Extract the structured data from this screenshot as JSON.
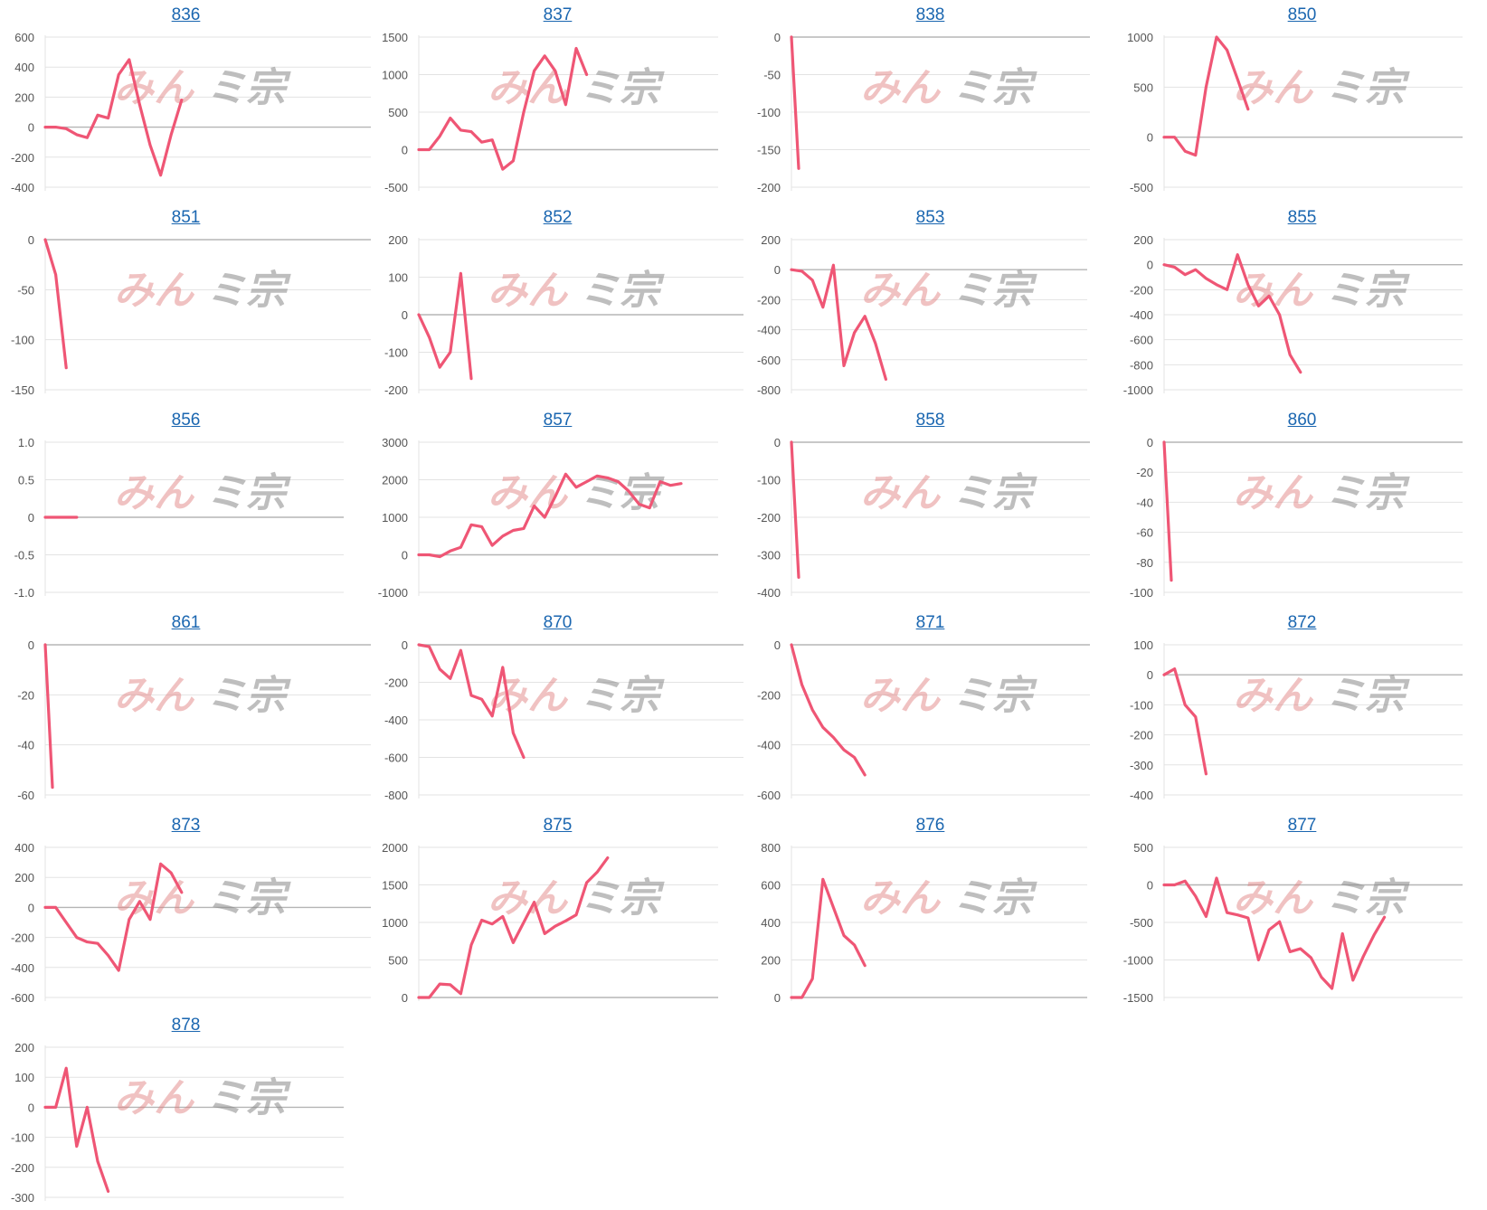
{
  "watermark": {
    "left": "みん",
    "right": "ミ宗"
  },
  "colors": {
    "line": "#ef5675",
    "title": "#1a66b0"
  },
  "chart_data": [
    {
      "type": "line",
      "title": "836",
      "ylim": [
        -400,
        600
      ],
      "ticks": [
        600,
        400,
        200,
        0,
        -200,
        -400
      ],
      "values": [
        0,
        0,
        -10,
        -50,
        -70,
        80,
        60,
        350,
        450,
        150,
        -120,
        -320,
        -50,
        180
      ]
    },
    {
      "type": "line",
      "title": "837",
      "ylim": [
        -500,
        1500
      ],
      "ticks": [
        1500,
        1000,
        500,
        0,
        -500
      ],
      "values": [
        0,
        0,
        180,
        420,
        260,
        240,
        100,
        130,
        -260,
        -150,
        500,
        1050,
        1250,
        1050,
        600,
        1350,
        1000
      ]
    },
    {
      "type": "line",
      "title": "838",
      "ylim": [
        -200,
        0
      ],
      "ticks": [
        0,
        -50,
        -100,
        -150,
        -200
      ],
      "values": [
        0,
        -175
      ]
    },
    {
      "type": "line",
      "title": "850",
      "ylim": [
        -500,
        1000
      ],
      "ticks": [
        1000,
        500,
        0,
        -500
      ],
      "values": [
        0,
        0,
        -140,
        -180,
        500,
        1000,
        870,
        580,
        280
      ]
    },
    {
      "type": "line",
      "title": "851",
      "ylim": [
        -150,
        0
      ],
      "ticks": [
        0,
        -50,
        -100,
        -150
      ],
      "values": [
        0,
        -35,
        -128
      ]
    },
    {
      "type": "line",
      "title": "852",
      "ylim": [
        -200,
        200
      ],
      "ticks": [
        200,
        100,
        0,
        -100,
        -200
      ],
      "values": [
        0,
        -60,
        -140,
        -100,
        110,
        -170
      ]
    },
    {
      "type": "line",
      "title": "853",
      "ylim": [
        -800,
        200
      ],
      "ticks": [
        200,
        0,
        -200,
        -400,
        -600,
        -800
      ],
      "values": [
        0,
        -10,
        -70,
        -250,
        30,
        -640,
        -420,
        -310,
        -490,
        -730
      ]
    },
    {
      "type": "line",
      "title": "855",
      "ylim": [
        -1000,
        200
      ],
      "ticks": [
        200,
        0,
        -200,
        -400,
        -600,
        -800,
        -1000
      ],
      "values": [
        0,
        -20,
        -80,
        -40,
        -110,
        -160,
        -200,
        80,
        -160,
        -330,
        -250,
        -400,
        -720,
        -860
      ]
    },
    {
      "type": "line",
      "title": "856",
      "ylim": [
        -1.0,
        1.0
      ],
      "ticks": [
        1.0,
        0.5,
        0,
        -0.5,
        -1.0
      ],
      "tickLabels": [
        "1.0",
        "0.5",
        "0",
        "-0.5",
        "-1.0"
      ],
      "values": [
        0,
        0,
        0,
        0
      ]
    },
    {
      "type": "line",
      "title": "857",
      "ylim": [
        -1000,
        3000
      ],
      "ticks": [
        3000,
        2000,
        1000,
        0,
        -1000
      ],
      "values": [
        0,
        0,
        -50,
        100,
        200,
        800,
        750,
        250,
        500,
        650,
        700,
        1300,
        1000,
        1550,
        2150,
        1800,
        1950,
        2100,
        2050,
        1950,
        1700,
        1350,
        1250,
        1950,
        1850,
        1900
      ]
    },
    {
      "type": "line",
      "title": "858",
      "ylim": [
        -400,
        0
      ],
      "ticks": [
        0,
        -100,
        -200,
        -300,
        -400
      ],
      "values": [
        0,
        -360
      ]
    },
    {
      "type": "line",
      "title": "860",
      "ylim": [
        -100,
        0
      ],
      "ticks": [
        0,
        -20,
        -40,
        -60,
        -80,
        -100
      ],
      "values": [
        0,
        -92
      ]
    },
    {
      "type": "line",
      "title": "861",
      "ylim": [
        -60,
        0
      ],
      "ticks": [
        0,
        -20,
        -40,
        -60
      ],
      "values": [
        0,
        -57
      ]
    },
    {
      "type": "line",
      "title": "870",
      "ylim": [
        -800,
        0
      ],
      "ticks": [
        0,
        -200,
        -400,
        -600,
        -800
      ],
      "values": [
        0,
        -10,
        -130,
        -180,
        -30,
        -270,
        -290,
        -380,
        -120,
        -470,
        -600
      ]
    },
    {
      "type": "line",
      "title": "871",
      "ylim": [
        -600,
        0
      ],
      "ticks": [
        0,
        -200,
        -400,
        -600
      ],
      "values": [
        0,
        -160,
        -260,
        -330,
        -370,
        -420,
        -450,
        -520
      ]
    },
    {
      "type": "line",
      "title": "872",
      "ylim": [
        -400,
        100
      ],
      "ticks": [
        100,
        0,
        -100,
        -200,
        -300,
        -400
      ],
      "values": [
        0,
        20,
        -100,
        -140,
        -330
      ]
    },
    {
      "type": "line",
      "title": "873",
      "ylim": [
        -600,
        400
      ],
      "ticks": [
        400,
        200,
        0,
        -200,
        -400,
        -600
      ],
      "values": [
        0,
        0,
        -100,
        -200,
        -230,
        -240,
        -320,
        -420,
        -80,
        40,
        -80,
        290,
        230,
        100
      ]
    },
    {
      "type": "line",
      "title": "875",
      "ylim": [
        0,
        2000
      ],
      "ticks": [
        2000,
        1500,
        1000,
        500,
        0
      ],
      "values": [
        0,
        0,
        180,
        170,
        50,
        700,
        1030,
        980,
        1080,
        730,
        1000,
        1270,
        850,
        950,
        1020,
        1100,
        1530,
        1670,
        1860
      ]
    },
    {
      "type": "line",
      "title": "876",
      "ylim": [
        0,
        800
      ],
      "ticks": [
        800,
        600,
        400,
        200,
        0
      ],
      "values": [
        0,
        0,
        100,
        630,
        480,
        330,
        280,
        170
      ]
    },
    {
      "type": "line",
      "title": "877",
      "ylim": [
        -1500,
        500
      ],
      "ticks": [
        500,
        0,
        -500,
        -1000,
        -1500
      ],
      "values": [
        0,
        0,
        50,
        -150,
        -420,
        90,
        -370,
        -400,
        -440,
        -1000,
        -600,
        -490,
        -890,
        -850,
        -970,
        -1230,
        -1380,
        -650,
        -1270,
        -950,
        -670,
        -430
      ]
    },
    {
      "type": "line",
      "title": "878",
      "ylim": [
        -300,
        200
      ],
      "ticks": [
        200,
        100,
        0,
        -100,
        -200,
        -300
      ],
      "values": [
        0,
        0,
        130,
        -130,
        0,
        -180,
        -280
      ]
    }
  ]
}
